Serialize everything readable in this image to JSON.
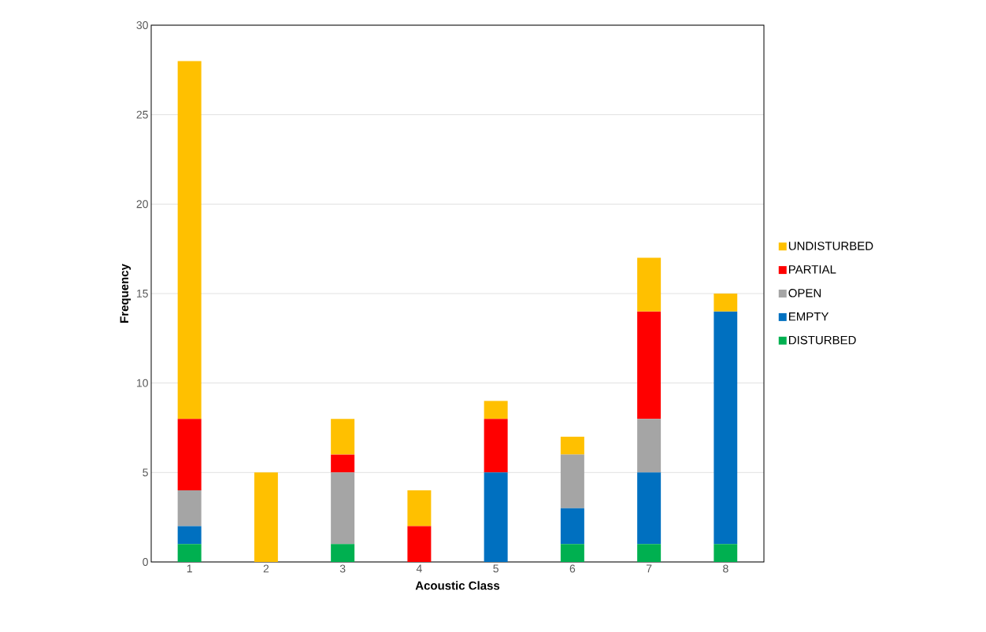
{
  "chart_data": {
    "type": "bar",
    "stacked": true,
    "xlabel": "Acoustic Class",
    "ylabel": "Frequency",
    "categories": [
      "1",
      "2",
      "3",
      "4",
      "5",
      "6",
      "7",
      "8"
    ],
    "series": [
      {
        "name": "DISTURBED",
        "color": "#00b050",
        "values": [
          1,
          null,
          1,
          null,
          null,
          1,
          1,
          1
        ]
      },
      {
        "name": "EMPTY",
        "color": "#0070c0",
        "values": [
          1,
          null,
          null,
          null,
          5,
          2,
          4,
          13
        ]
      },
      {
        "name": "OPEN",
        "color": "#a5a5a5",
        "values": [
          2,
          null,
          4,
          null,
          null,
          3,
          3,
          null
        ]
      },
      {
        "name": "PARTIAL",
        "color": "#ff0000",
        "values": [
          4,
          null,
          1,
          2,
          3,
          null,
          6,
          null
        ]
      },
      {
        "name": "UNDISTURBED",
        "color": "#ffc000",
        "values": [
          20,
          5,
          2,
          2,
          1,
          1,
          3,
          1
        ]
      }
    ],
    "ylim": [
      0,
      30
    ],
    "yticks": [
      0,
      5,
      10,
      15,
      20,
      25,
      30
    ],
    "grid": "y",
    "legend": "right"
  }
}
